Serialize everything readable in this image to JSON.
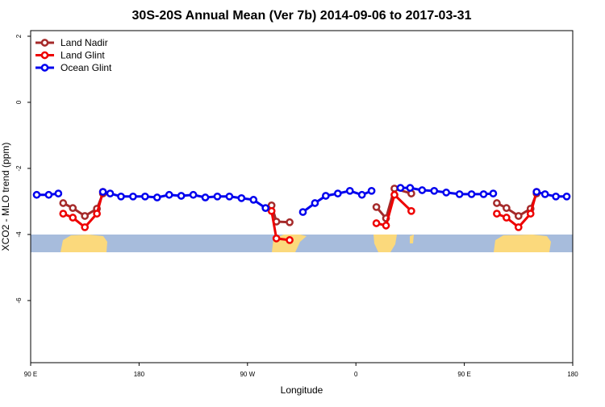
{
  "chart_data": {
    "type": "line",
    "title": "30S-20S Annual Mean (Ver 7b)   2014-09-06 to 2017-03-31",
    "x_label": "Longitude",
    "y_label": "XCO2 - MLO trend (ppm)",
    "xlim": [
      90,
      540
    ],
    "xticks": [
      {
        "value": 90,
        "label": "90 E"
      },
      {
        "value": 180,
        "label": "180"
      },
      {
        "value": 270,
        "label": "90 W"
      },
      {
        "value": 360,
        "label": "0"
      },
      {
        "value": 450,
        "label": "90 E"
      },
      {
        "value": 540,
        "label": "180"
      }
    ],
    "ylim": [
      -7.88,
      2.17
    ],
    "yticks": [
      2,
      0,
      -2,
      -4,
      -6
    ],
    "legend": "top-left",
    "series": [
      {
        "name": "Land Nadir",
        "color": "#a52a2a",
        "x": [
          117,
          125,
          135,
          145,
          150,
          null,
          290,
          294,
          305,
          null,
          377,
          385,
          392,
          406,
          null,
          477,
          485,
          495,
          505,
          510
        ],
        "values": [
          -3.05,
          -3.2,
          -3.44,
          -3.22,
          -2.76,
          null,
          -3.12,
          -3.61,
          -3.63,
          null,
          -3.17,
          -3.51,
          -2.61,
          -2.76,
          null,
          -3.05,
          -3.2,
          -3.44,
          -3.22,
          -2.76
        ]
      },
      {
        "name": "Land Glint",
        "color": "#ee0000",
        "x": [
          117,
          125,
          135,
          145,
          150,
          null,
          290,
          294,
          305,
          null,
          377,
          385,
          392,
          406,
          null,
          477,
          485,
          495,
          505,
          510
        ],
        "values": [
          -3.37,
          -3.49,
          -3.78,
          -3.37,
          -2.71,
          null,
          -3.29,
          -4.12,
          -4.17,
          null,
          -3.66,
          -3.73,
          -2.8,
          -3.29,
          null,
          -3.37,
          -3.49,
          -3.78,
          -3.37,
          -2.71
        ]
      },
      {
        "name": "Ocean Glint",
        "color": "#0000ee",
        "x": [
          95,
          105,
          113,
          null,
          150,
          156,
          165,
          175,
          185,
          195,
          205,
          215,
          225,
          235,
          245,
          255,
          265,
          275,
          285,
          null,
          316,
          326,
          335,
          345,
          355,
          365,
          373,
          null,
          397,
          405,
          415,
          425,
          435,
          446,
          456,
          466,
          474,
          null,
          510,
          517,
          526,
          535
        ],
        "values": [
          -2.8,
          -2.8,
          -2.76,
          null,
          -2.71,
          -2.76,
          -2.85,
          -2.85,
          -2.85,
          -2.88,
          -2.8,
          -2.83,
          -2.8,
          -2.88,
          -2.85,
          -2.85,
          -2.9,
          -2.95,
          -3.2,
          null,
          -3.32,
          -3.05,
          -2.83,
          -2.76,
          -2.68,
          -2.8,
          -2.68,
          null,
          -2.59,
          -2.59,
          -2.66,
          -2.68,
          -2.73,
          -2.78,
          -2.78,
          -2.78,
          -2.76,
          null,
          -2.71,
          -2.78,
          -2.85,
          -2.85
        ]
      }
    ]
  }
}
